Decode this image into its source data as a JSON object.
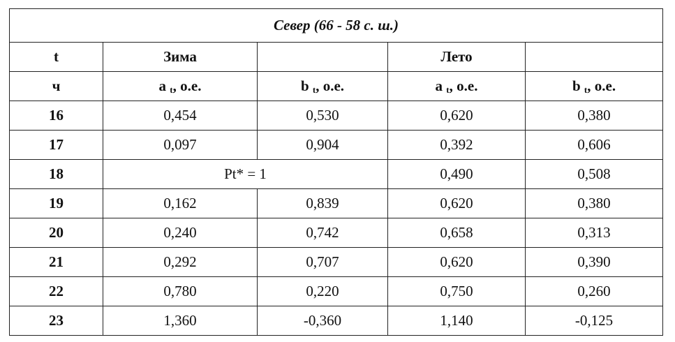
{
  "table": {
    "title": "Север (66 - 58 с. ш.)",
    "header_top": {
      "t": "t",
      "winter": "Зима",
      "summer": "Лето"
    },
    "header_sub": {
      "hour": "ч",
      "cols": [
        {
          "symbol": "a",
          "sub": "t",
          "unit": ", о.е."
        },
        {
          "symbol": "b",
          "sub": "t",
          "unit": ", о.е."
        },
        {
          "symbol": "a",
          "sub": "t",
          "unit": ", о.е."
        },
        {
          "symbol": "b",
          "sub": "t",
          "unit": ", о.е."
        }
      ]
    },
    "rows": [
      {
        "t": 16,
        "values": [
          "0,454",
          "0,530",
          "0,620",
          "0,380"
        ]
      },
      {
        "t": 17,
        "values": [
          "0,097",
          "0,904",
          "0,392",
          "0,606"
        ]
      },
      {
        "t": 18,
        "merged": "Pt* = 1",
        "values": [
          "0,490",
          "0,508"
        ]
      },
      {
        "t": 19,
        "values": [
          "0,162",
          "0,839",
          "0,620",
          "0,380"
        ]
      },
      {
        "t": 20,
        "values": [
          "0,240",
          "0,742",
          "0,658",
          "0,313"
        ]
      },
      {
        "t": 21,
        "values": [
          "0,292",
          "0,707",
          "0,620",
          "0,390"
        ]
      },
      {
        "t": 22,
        "values": [
          "0,780",
          "0,220",
          "0,750",
          "0,260"
        ]
      },
      {
        "t": 23,
        "values": [
          "1,360",
          "-0,360",
          "1,140",
          "-0,125"
        ]
      }
    ]
  }
}
